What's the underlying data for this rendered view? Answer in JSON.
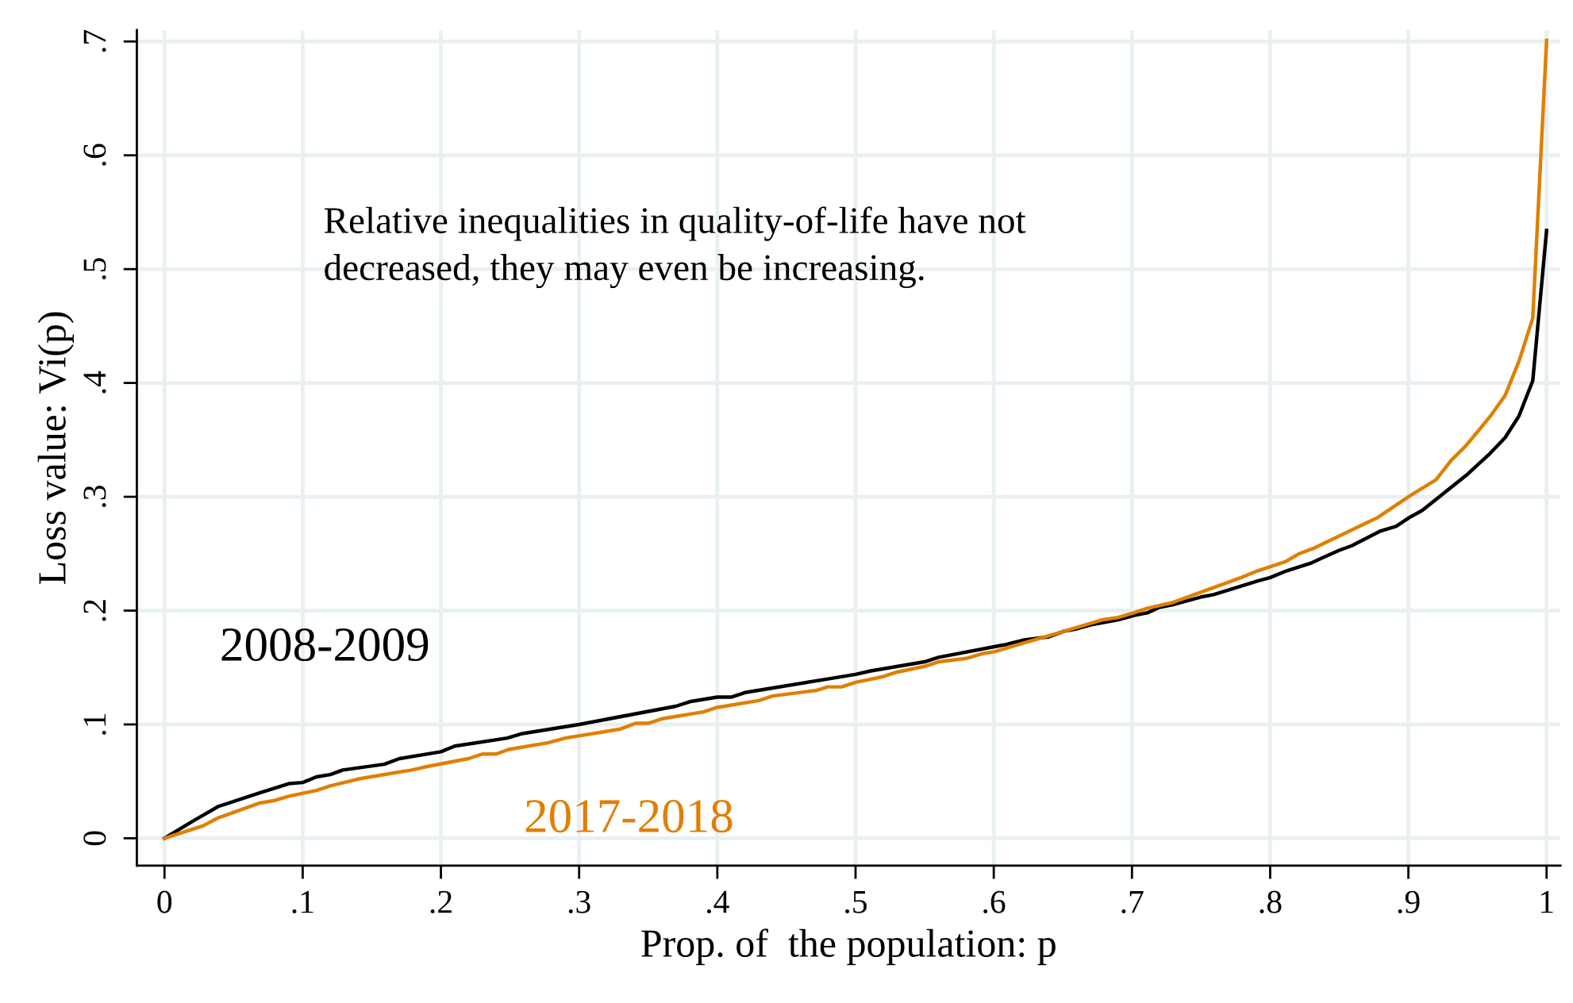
{
  "chart_data": {
    "type": "line",
    "xlabel": "Prop. of  the population: p",
    "ylabel": "Loss value: Vi(p)",
    "annotations": [
      "Relative inequalities in quality-of-life have not\ndecreased, they may even be increasing."
    ],
    "xlim": [
      -0.02,
      1.01
    ],
    "ylim": [
      -0.024,
      0.71
    ],
    "xticks": [
      0,
      {
        "value": 0.1,
        "label": ".1"
      },
      {
        "value": 0.2,
        "label": ".2"
      },
      {
        "value": 0.3,
        "label": ".3"
      },
      {
        "value": 0.4,
        "label": ".4"
      },
      {
        "value": 0.5,
        "label": ".5"
      },
      {
        "value": 0.6,
        "label": ".6"
      },
      {
        "value": 0.7,
        "label": ".7"
      },
      {
        "value": 0.8,
        "label": ".8"
      },
      {
        "value": 0.9,
        "label": ".9"
      },
      1
    ],
    "yticks": [
      0,
      {
        "value": 0.1,
        "label": ".1"
      },
      {
        "value": 0.2,
        "label": ".2"
      },
      {
        "value": 0.3,
        "label": ".3"
      },
      {
        "value": 0.4,
        "label": ".4"
      },
      {
        "value": 0.5,
        "label": ".5"
      },
      {
        "value": 0.6,
        "label": ".6"
      },
      {
        "value": 0.7,
        "label": ".7"
      }
    ],
    "grid": true,
    "legend": false,
    "marker": "none",
    "line_style": "solid",
    "series": [
      {
        "name": "2008-2009",
        "color": "#000000",
        "x": [
          0,
          0.019,
          0.039,
          0.069,
          0.09,
          0.1,
          0.11,
          0.12,
          0.129,
          0.159,
          0.17,
          0.2,
          0.21,
          0.248,
          0.259,
          0.3,
          0.37,
          0.38,
          0.4,
          0.41,
          0.42,
          0.48,
          0.5,
          0.511,
          0.55,
          0.56,
          0.608,
          0.621,
          0.64,
          0.651,
          0.66,
          0.672,
          0.69,
          0.702,
          0.711,
          0.72,
          0.729,
          0.75,
          0.759,
          0.791,
          0.8,
          0.812,
          0.83,
          0.839,
          0.85,
          0.859,
          0.88,
          0.891,
          0.901,
          0.91,
          0.942,
          0.951,
          0.959,
          0.97,
          0.98,
          0.99,
          1.0
        ],
        "values": [
          0,
          0.014,
          0.028,
          0.04,
          0.048,
          0.049,
          0.054,
          0.056,
          0.06,
          0.065,
          0.07,
          0.076,
          0.081,
          0.088,
          0.092,
          0.1,
          0.116,
          0.12,
          0.124,
          0.124,
          0.128,
          0.14,
          0.144,
          0.147,
          0.155,
          0.159,
          0.17,
          0.174,
          0.177,
          0.182,
          0.184,
          0.188,
          0.192,
          0.196,
          0.198,
          0.203,
          0.205,
          0.212,
          0.214,
          0.226,
          0.229,
          0.235,
          0.242,
          0.247,
          0.253,
          0.257,
          0.27,
          0.274,
          0.282,
          0.288,
          0.319,
          0.329,
          0.338,
          0.352,
          0.371,
          0.402,
          0.534
        ]
      },
      {
        "name": "2017-2018",
        "color": "#e07f00",
        "x": [
          0,
          0.028,
          0.039,
          0.069,
          0.079,
          0.09,
          0.11,
          0.12,
          0.14,
          0.179,
          0.19,
          0.22,
          0.23,
          0.24,
          0.249,
          0.278,
          0.29,
          0.33,
          0.341,
          0.35,
          0.36,
          0.39,
          0.4,
          0.43,
          0.44,
          0.472,
          0.48,
          0.49,
          0.5,
          0.52,
          0.53,
          0.55,
          0.56,
          0.58,
          0.591,
          0.601,
          0.62,
          0.64,
          0.679,
          0.69,
          0.701,
          0.711,
          0.729,
          0.779,
          0.791,
          0.811,
          0.821,
          0.832,
          0.878,
          0.9,
          0.92,
          0.931,
          0.941,
          0.95,
          0.96,
          0.97,
          0.98,
          0.99,
          1.0
        ],
        "values": [
          0,
          0.011,
          0.018,
          0.031,
          0.033,
          0.037,
          0.042,
          0.046,
          0.052,
          0.06,
          0.063,
          0.07,
          0.074,
          0.074,
          0.078,
          0.084,
          0.088,
          0.096,
          0.101,
          0.101,
          0.105,
          0.111,
          0.115,
          0.121,
          0.125,
          0.13,
          0.133,
          0.133,
          0.137,
          0.142,
          0.146,
          0.151,
          0.155,
          0.158,
          0.162,
          0.164,
          0.171,
          0.178,
          0.192,
          0.194,
          0.198,
          0.202,
          0.207,
          0.229,
          0.235,
          0.243,
          0.25,
          0.255,
          0.282,
          0.3,
          0.315,
          0.332,
          0.344,
          0.357,
          0.372,
          0.389,
          0.419,
          0.457,
          0.701
        ]
      }
    ]
  }
}
